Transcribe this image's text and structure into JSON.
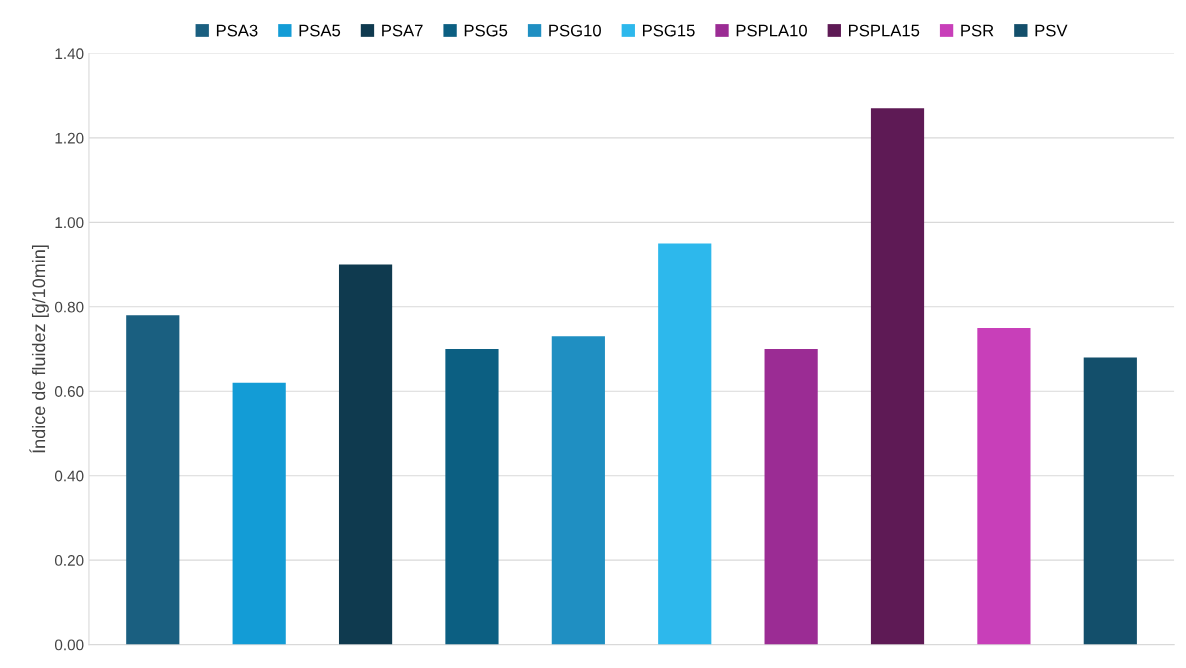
{
  "chart_data": {
    "type": "bar",
    "ylabel": "Índice de fluidez [g/10min]",
    "categories": [
      null,
      null,
      null,
      null,
      null,
      null,
      null,
      null,
      null,
      null
    ],
    "series": [
      {
        "name": "PSA3",
        "color": "#1a5f80",
        "values": [
          0.78,
          null,
          null,
          null,
          null,
          null,
          null,
          null,
          null,
          null
        ]
      },
      {
        "name": "PSA5",
        "color": "#139cd6",
        "values": [
          null,
          0.62,
          null,
          null,
          null,
          null,
          null,
          null,
          null,
          null
        ]
      },
      {
        "name": "PSA7",
        "color": "#0f3a4f",
        "values": [
          null,
          null,
          0.9,
          null,
          null,
          null,
          null,
          null,
          null,
          null
        ]
      },
      {
        "name": "PSG5",
        "color": "#0c5f82",
        "values": [
          null,
          null,
          null,
          0.7,
          null,
          null,
          null,
          null,
          null,
          null
        ]
      },
      {
        "name": "PSG10",
        "color": "#1f8fc2",
        "values": [
          null,
          null,
          null,
          null,
          0.73,
          null,
          null,
          null,
          null,
          null
        ]
      },
      {
        "name": "PSG15",
        "color": "#2db8ec",
        "values": [
          null,
          null,
          null,
          null,
          null,
          0.95,
          null,
          null,
          null,
          null
        ]
      },
      {
        "name": "PSPLA10",
        "color": "#9b2c94",
        "values": [
          null,
          null,
          null,
          null,
          null,
          null,
          0.7,
          null,
          null,
          null
        ]
      },
      {
        "name": "PSPLA15",
        "color": "#5e1a55",
        "values": [
          null,
          null,
          null,
          null,
          null,
          null,
          null,
          1.27,
          null,
          null
        ]
      },
      {
        "name": "PSR",
        "color": "#c83fb9",
        "values": [
          null,
          null,
          null,
          null,
          null,
          null,
          null,
          null,
          0.75,
          null
        ]
      },
      {
        "name": "PSV",
        "color": "#134f6b",
        "values": [
          null,
          null,
          null,
          null,
          null,
          null,
          null,
          null,
          null,
          0.68
        ]
      }
    ],
    "ylim": [
      0,
      1.4
    ],
    "yticks": [
      {
        "value": 0,
        "label": "0.00"
      },
      {
        "value": 0.2,
        "label": "0.20"
      },
      {
        "value": 0.4,
        "label": "0.40"
      },
      {
        "value": 0.6,
        "label": "0.60"
      },
      {
        "value": 0.8,
        "label": "0.80"
      },
      {
        "value": 1.0,
        "label": "1.00"
      },
      {
        "value": 1.2,
        "label": "1.20"
      },
      {
        "value": 1.4,
        "label": "1.40"
      }
    ],
    "grid": "y",
    "legend": "top",
    "tick_labels": "y"
  }
}
